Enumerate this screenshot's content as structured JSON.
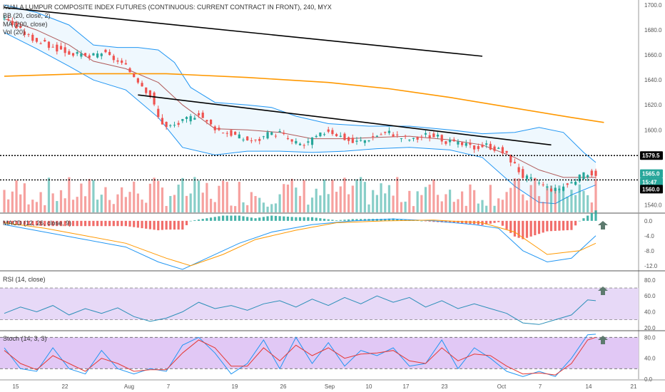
{
  "title": "KUALA LUMPUR COMPOSITE INDEX FUTURES (CONTINUOUS: CURRENT CONTRACT IN FRONT), 240, MYX",
  "indicators": {
    "bb": "BB (20, close, 2)",
    "ma": "MA (200, close)",
    "vol": "Vol (20)",
    "macd": "MACD (12, 26, close, 9)",
    "rsi": "RSI (14, close)",
    "stoch": "Stoch (14, 3, 3)"
  },
  "price_badges": [
    {
      "text": "1579.5",
      "bg": "#000000"
    },
    {
      "text": "1565.0",
      "bg": "#26a69a"
    },
    {
      "text": "15:47",
      "bg": "#26a69a"
    },
    {
      "text": "1560.0",
      "bg": "#000000"
    }
  ],
  "x_ticks": [
    "15",
    "22",
    "Aug",
    "7",
    "19",
    "26",
    "Sep",
    "10",
    "17",
    "23",
    "Oct",
    "7",
    "14",
    "21"
  ],
  "colors": {
    "up": "#26a69a",
    "down": "#ef5350",
    "ma": "#ff9800",
    "bb": "#2196f3",
    "rsi_bg": "#e7d9f7",
    "stoch_bg": "#e1c8f5",
    "arrow": "#5d7a6e"
  },
  "chart_data": [
    {
      "type": "candlestick",
      "title": "KUALA LUMPUR COMPOSITE INDEX FUTURES (CONTINUOUS: CURRENT CONTRACT IN FRONT), 240, MYX",
      "y_ticks": [
        1700.0,
        1680.0,
        1660.0,
        1640.0,
        1620.0,
        1600.0,
        1580.0,
        1560.0,
        1540.0
      ],
      "ylim": [
        1534,
        1704
      ],
      "close_path": [
        [
          0,
          1690
        ],
        [
          3,
          1682
        ],
        [
          6,
          1675
        ],
        [
          9,
          1670
        ],
        [
          12,
          1666
        ],
        [
          15,
          1663
        ],
        [
          18,
          1660
        ],
        [
          21,
          1658
        ],
        [
          24,
          1662
        ],
        [
          27,
          1657
        ],
        [
          30,
          1650
        ],
        [
          33,
          1640
        ],
        [
          36,
          1628
        ],
        [
          38,
          1610
        ],
        [
          40,
          1602
        ],
        [
          43,
          1605
        ],
        [
          46,
          1610
        ],
        [
          48,
          1614
        ],
        [
          50,
          1606
        ],
        [
          53,
          1600
        ],
        [
          56,
          1597
        ],
        [
          59,
          1593
        ],
        [
          62,
          1591
        ],
        [
          65,
          1596
        ],
        [
          68,
          1598
        ],
        [
          71,
          1590
        ],
        [
          74,
          1588
        ],
        [
          77,
          1594
        ],
        [
          80,
          1600
        ],
        [
          83,
          1595
        ],
        [
          86,
          1590
        ],
        [
          89,
          1592
        ],
        [
          92,
          1596
        ],
        [
          95,
          1598
        ],
        [
          98,
          1594
        ],
        [
          101,
          1592
        ],
        [
          104,
          1596
        ],
        [
          107,
          1594
        ],
        [
          110,
          1590
        ],
        [
          113,
          1588
        ],
        [
          116,
          1586
        ],
        [
          119,
          1588
        ],
        [
          122,
          1584
        ],
        [
          124,
          1580
        ],
        [
          126,
          1572
        ],
        [
          128,
          1563
        ],
        [
          130,
          1560
        ],
        [
          132,
          1558
        ],
        [
          134,
          1554
        ],
        [
          136,
          1552
        ],
        [
          138,
          1555
        ],
        [
          140,
          1558
        ],
        [
          142,
          1562
        ],
        [
          144,
          1566
        ],
        [
          146,
          1565
        ]
      ],
      "ma200": [
        [
          0,
          1643
        ],
        [
          20,
          1645
        ],
        [
          40,
          1645
        ],
        [
          60,
          1642
        ],
        [
          80,
          1638
        ],
        [
          95,
          1633
        ],
        [
          110,
          1626
        ],
        [
          125,
          1618
        ],
        [
          140,
          1610
        ],
        [
          148,
          1606
        ]
      ],
      "bb_upper": [
        [
          0,
          1700
        ],
        [
          8,
          1694
        ],
        [
          16,
          1684
        ],
        [
          22,
          1668
        ],
        [
          28,
          1666
        ],
        [
          33,
          1666
        ],
        [
          38,
          1664
        ],
        [
          42,
          1654
        ],
        [
          46,
          1634
        ],
        [
          52,
          1622
        ],
        [
          60,
          1620
        ],
        [
          66,
          1618
        ],
        [
          72,
          1611
        ],
        [
          80,
          1605
        ],
        [
          90,
          1603
        ],
        [
          100,
          1603
        ],
        [
          110,
          1600
        ],
        [
          118,
          1597
        ],
        [
          126,
          1598
        ],
        [
          132,
          1602
        ],
        [
          138,
          1598
        ],
        [
          143,
          1582
        ],
        [
          146,
          1574
        ]
      ],
      "bb_lower": [
        [
          0,
          1678
        ],
        [
          8,
          1665
        ],
        [
          16,
          1651
        ],
        [
          22,
          1640
        ],
        [
          30,
          1632
        ],
        [
          38,
          1610
        ],
        [
          44,
          1586
        ],
        [
          52,
          1580
        ],
        [
          60,
          1583
        ],
        [
          68,
          1583
        ],
        [
          76,
          1582
        ],
        [
          84,
          1583
        ],
        [
          92,
          1585
        ],
        [
          100,
          1586
        ],
        [
          110,
          1584
        ],
        [
          118,
          1578
        ],
        [
          126,
          1555
        ],
        [
          132,
          1542
        ],
        [
          136,
          1541
        ],
        [
          140,
          1548
        ],
        [
          146,
          1556
        ]
      ],
      "bb_basis": [
        [
          0,
          1689
        ],
        [
          8,
          1680
        ],
        [
          16,
          1668
        ],
        [
          22,
          1655
        ],
        [
          30,
          1649
        ],
        [
          38,
          1638
        ],
        [
          44,
          1620
        ],
        [
          52,
          1601
        ],
        [
          60,
          1600
        ],
        [
          68,
          1598
        ],
        [
          76,
          1593
        ],
        [
          84,
          1593
        ],
        [
          92,
          1594
        ],
        [
          100,
          1595
        ],
        [
          110,
          1592
        ],
        [
          118,
          1588
        ],
        [
          126,
          1578
        ],
        [
          132,
          1568
        ],
        [
          138,
          1562
        ],
        [
          146,
          1562
        ]
      ],
      "trendlines": [
        [
          [
            0,
            1698
          ],
          [
            118,
            1659
          ]
        ],
        [
          [
            33,
            1628
          ],
          [
            135,
            1588
          ]
        ]
      ],
      "hlines": [
        1579.5,
        1560.0
      ],
      "volume_bars": 150
    },
    {
      "type": "line",
      "title": "MACD (12, 26, close, 9)",
      "y_ticks": [
        0.0,
        -4.0,
        -8.0,
        -12.0
      ],
      "ylim": [
        -13,
        1.5
      ],
      "macd": [
        [
          0,
          -1
        ],
        [
          10,
          -3
        ],
        [
          20,
          -5
        ],
        [
          30,
          -7
        ],
        [
          38,
          -11
        ],
        [
          44,
          -13
        ],
        [
          50,
          -10
        ],
        [
          58,
          -6
        ],
        [
          66,
          -3
        ],
        [
          76,
          -1
        ],
        [
          86,
          0
        ],
        [
          96,
          0.5
        ],
        [
          106,
          0
        ],
        [
          116,
          -1
        ],
        [
          122,
          -2
        ],
        [
          128,
          -8
        ],
        [
          134,
          -11
        ],
        [
          140,
          -10
        ],
        [
          146,
          -4
        ]
      ],
      "signal": [
        [
          0,
          -0.5
        ],
        [
          10,
          -2
        ],
        [
          20,
          -4
        ],
        [
          30,
          -6
        ],
        [
          40,
          -10
        ],
        [
          46,
          -12
        ],
        [
          54,
          -9
        ],
        [
          62,
          -5
        ],
        [
          72,
          -2.5
        ],
        [
          82,
          -0.5
        ],
        [
          94,
          0
        ],
        [
          106,
          0.2
        ],
        [
          118,
          -0.5
        ],
        [
          126,
          -3
        ],
        [
          134,
          -9
        ],
        [
          142,
          -8
        ],
        [
          146,
          -6
        ]
      ]
    },
    {
      "type": "line",
      "title": "RSI (14, close)",
      "y_ticks": [
        80.0,
        60.0,
        40.0,
        20.0
      ],
      "ylim": [
        18,
        88
      ],
      "rsi": [
        [
          0,
          38
        ],
        [
          4,
          46
        ],
        [
          8,
          40
        ],
        [
          12,
          48
        ],
        [
          16,
          36
        ],
        [
          20,
          44
        ],
        [
          24,
          38
        ],
        [
          28,
          45
        ],
        [
          32,
          34
        ],
        [
          36,
          28
        ],
        [
          40,
          32
        ],
        [
          44,
          40
        ],
        [
          48,
          52
        ],
        [
          52,
          44
        ],
        [
          56,
          48
        ],
        [
          60,
          42
        ],
        [
          64,
          50
        ],
        [
          68,
          54
        ],
        [
          72,
          46
        ],
        [
          76,
          56
        ],
        [
          80,
          48
        ],
        [
          84,
          58
        ],
        [
          88,
          50
        ],
        [
          92,
          60
        ],
        [
          96,
          52
        ],
        [
          100,
          58
        ],
        [
          104,
          46
        ],
        [
          108,
          54
        ],
        [
          112,
          44
        ],
        [
          116,
          50
        ],
        [
          120,
          44
        ],
        [
          124,
          38
        ],
        [
          128,
          26
        ],
        [
          132,
          24
        ],
        [
          136,
          30
        ],
        [
          140,
          36
        ],
        [
          144,
          55
        ],
        [
          146,
          54
        ]
      ],
      "levels": [
        70,
        30
      ]
    },
    {
      "type": "line",
      "title": "Stoch (14, 3, 3)",
      "y_ticks": [
        80.0,
        40.0,
        0.0
      ],
      "ylim": [
        0,
        90
      ],
      "k": [
        [
          0,
          60
        ],
        [
          4,
          20
        ],
        [
          8,
          15
        ],
        [
          12,
          60
        ],
        [
          16,
          20
        ],
        [
          20,
          10
        ],
        [
          24,
          55
        ],
        [
          28,
          20
        ],
        [
          32,
          10
        ],
        [
          36,
          20
        ],
        [
          40,
          15
        ],
        [
          44,
          65
        ],
        [
          48,
          80
        ],
        [
          52,
          50
        ],
        [
          56,
          10
        ],
        [
          60,
          30
        ],
        [
          64,
          75
        ],
        [
          68,
          20
        ],
        [
          72,
          80
        ],
        [
          76,
          30
        ],
        [
          80,
          70
        ],
        [
          84,
          25
        ],
        [
          88,
          55
        ],
        [
          92,
          45
        ],
        [
          96,
          60
        ],
        [
          100,
          25
        ],
        [
          104,
          30
        ],
        [
          108,
          75
        ],
        [
          112,
          20
        ],
        [
          116,
          60
        ],
        [
          120,
          40
        ],
        [
          124,
          15
        ],
        [
          128,
          5
        ],
        [
          132,
          15
        ],
        [
          136,
          5
        ],
        [
          140,
          40
        ],
        [
          144,
          85
        ],
        [
          146,
          86
        ]
      ],
      "d": [
        [
          0,
          55
        ],
        [
          4,
          30
        ],
        [
          8,
          18
        ],
        [
          12,
          45
        ],
        [
          16,
          30
        ],
        [
          20,
          15
        ],
        [
          24,
          40
        ],
        [
          28,
          30
        ],
        [
          32,
          15
        ],
        [
          36,
          18
        ],
        [
          40,
          18
        ],
        [
          44,
          50
        ],
        [
          48,
          75
        ],
        [
          52,
          60
        ],
        [
          56,
          25
        ],
        [
          60,
          25
        ],
        [
          64,
          60
        ],
        [
          68,
          35
        ],
        [
          72,
          65
        ],
        [
          76,
          45
        ],
        [
          80,
          60
        ],
        [
          84,
          40
        ],
        [
          88,
          48
        ],
        [
          92,
          50
        ],
        [
          96,
          55
        ],
        [
          100,
          35
        ],
        [
          104,
          30
        ],
        [
          108,
          60
        ],
        [
          112,
          35
        ],
        [
          116,
          48
        ],
        [
          120,
          45
        ],
        [
          124,
          25
        ],
        [
          128,
          10
        ],
        [
          132,
          12
        ],
        [
          136,
          8
        ],
        [
          140,
          30
        ],
        [
          144,
          75
        ],
        [
          146,
          80
        ]
      ],
      "levels": [
        80,
        20
      ]
    }
  ]
}
